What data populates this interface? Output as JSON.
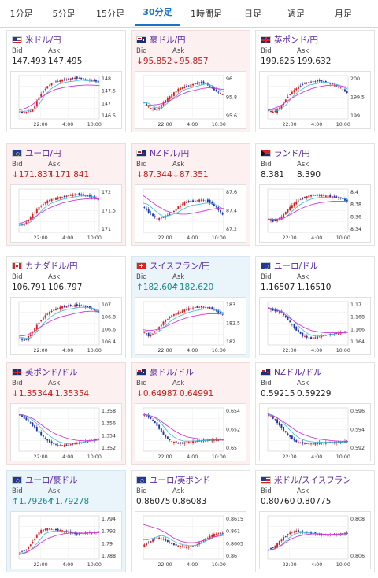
{
  "tabs": [
    {
      "label": "1分足",
      "active": false
    },
    {
      "label": "5分足",
      "active": false
    },
    {
      "label": "15分足",
      "active": false
    },
    {
      "label": "30分足",
      "active": true
    },
    {
      "label": "1時間足",
      "active": false
    },
    {
      "label": "日足",
      "active": false
    },
    {
      "label": "週足",
      "active": false
    },
    {
      "label": "月足",
      "active": false
    }
  ],
  "labels": {
    "bid": "Bid",
    "ask": "Ask"
  },
  "x_ticks": [
    "22:00",
    "4:00",
    "10:00"
  ],
  "colors": {
    "up": "#d42020",
    "down": "#1c35a8",
    "ma": "#d63ad6",
    "ma2": "#3bb8d8",
    "title": "#5a2aa0"
  },
  "pairs": [
    {
      "name": "米ドル/円",
      "flag": "us-flag",
      "trend": "none",
      "bid": "147.493",
      "ask": "147.495",
      "bid_dir": "",
      "ask_dir": "",
      "y_ticks": [
        "148",
        "147.5",
        "147",
        "146.5"
      ],
      "chart_data": {
        "type": "candlestick",
        "ylim": [
          146.3,
          148.2
        ],
        "shape": [
          0.15,
          0.15,
          0.2,
          0.55,
          0.75,
          0.85,
          0.9,
          0.92,
          0.95,
          0.92,
          0.9,
          0.85
        ],
        "ma_shape": [
          0.2,
          0.25,
          0.35,
          0.5,
          0.6,
          0.68,
          0.72,
          0.75,
          0.77,
          0.78,
          0.78,
          0.77
        ]
      }
    },
    {
      "name": "豪ドル/円",
      "flag": "au-flag",
      "trend": "down",
      "bid": "95.852",
      "ask": "95.857",
      "bid_dir": "down",
      "ask_dir": "down",
      "y_ticks": [
        "96",
        "95.8",
        "95.6"
      ],
      "chart_data": {
        "type": "candlestick",
        "ylim": [
          95.5,
          96.1
        ],
        "shape": [
          0.4,
          0.25,
          0.2,
          0.4,
          0.55,
          0.7,
          0.75,
          0.8,
          0.85,
          0.78,
          0.65,
          0.55
        ],
        "ma_shape": [
          0.3,
          0.32,
          0.33,
          0.38,
          0.45,
          0.55,
          0.62,
          0.66,
          0.7,
          0.72,
          0.7,
          0.68
        ]
      }
    },
    {
      "name": "英ポンド/円",
      "flag": "gb-flag",
      "trend": "none",
      "bid": "199.625",
      "ask": "199.632",
      "bid_dir": "",
      "ask_dir": "",
      "y_ticks": [
        "200",
        "199.5",
        "199"
      ],
      "chart_data": {
        "type": "candlestick",
        "ylim": [
          198.9,
          200.2
        ],
        "shape": [
          0.2,
          0.15,
          0.3,
          0.55,
          0.7,
          0.82,
          0.85,
          0.88,
          0.86,
          0.8,
          0.72,
          0.6
        ],
        "ma_shape": [
          0.2,
          0.25,
          0.33,
          0.45,
          0.55,
          0.63,
          0.7,
          0.74,
          0.77,
          0.78,
          0.76,
          0.73
        ]
      }
    },
    {
      "name": "ユーロ/円",
      "flag": "eu-flag",
      "trend": "down",
      "bid": "171.837",
      "ask": "171.841",
      "bid_dir": "down",
      "ask_dir": "down",
      "y_ticks": [
        "172",
        "171.5",
        "171"
      ],
      "chart_data": {
        "type": "candlestick",
        "ylim": [
          170.85,
          172.25
        ],
        "shape": [
          0.15,
          0.2,
          0.4,
          0.6,
          0.72,
          0.78,
          0.82,
          0.85,
          0.88,
          0.86,
          0.82,
          0.75
        ],
        "ma_shape": [
          0.2,
          0.25,
          0.33,
          0.45,
          0.55,
          0.62,
          0.68,
          0.72,
          0.75,
          0.77,
          0.78,
          0.77
        ]
      }
    },
    {
      "name": "NZドル/円",
      "flag": "nz-flag",
      "trend": "down",
      "bid": "87.344",
      "ask": "87.351",
      "bid_dir": "down",
      "ask_dir": "down",
      "y_ticks": [
        "87.6",
        "87.4",
        "87.2"
      ],
      "chart_data": {
        "type": "candlestick",
        "ylim": [
          87.1,
          87.7
        ],
        "shape": [
          0.6,
          0.45,
          0.3,
          0.35,
          0.45,
          0.6,
          0.7,
          0.72,
          0.75,
          0.72,
          0.6,
          0.4
        ],
        "ma_shape": [
          0.85,
          0.72,
          0.6,
          0.5,
          0.45,
          0.42,
          0.42,
          0.45,
          0.48,
          0.52,
          0.55,
          0.55
        ]
      }
    },
    {
      "name": "ランド/円",
      "flag": "za-flag",
      "trend": "none",
      "bid": "8.381",
      "ask": "8.390",
      "bid_dir": "",
      "ask_dir": "",
      "y_ticks": [
        "8.4",
        "8.38",
        "8.36",
        "8.34"
      ],
      "chart_data": {
        "type": "candlestick",
        "ylim": [
          8.33,
          8.41
        ],
        "shape": [
          0.3,
          0.25,
          0.35,
          0.55,
          0.7,
          0.8,
          0.85,
          0.86,
          0.84,
          0.82,
          0.8,
          0.72
        ],
        "ma_shape": [
          0.3,
          0.3,
          0.32,
          0.4,
          0.5,
          0.58,
          0.64,
          0.68,
          0.7,
          0.72,
          0.72,
          0.72
        ]
      }
    },
    {
      "name": "カナダドル/円",
      "flag": "ca-flag",
      "trend": "none",
      "bid": "106.791",
      "ask": "106.797",
      "bid_dir": "",
      "ask_dir": "",
      "y_ticks": [
        "107",
        "106.8",
        "106.6",
        "106.4"
      ],
      "chart_data": {
        "type": "candlestick",
        "ylim": [
          106.25,
          107.1
        ],
        "shape": [
          0.15,
          0.1,
          0.3,
          0.55,
          0.72,
          0.82,
          0.88,
          0.9,
          0.92,
          0.9,
          0.85,
          0.75
        ],
        "ma_shape": [
          0.2,
          0.22,
          0.3,
          0.42,
          0.52,
          0.6,
          0.66,
          0.7,
          0.74,
          0.77,
          0.78,
          0.77
        ]
      }
    },
    {
      "name": "スイスフラン/円",
      "flag": "ch-flag",
      "trend": "up",
      "bid": "182.604",
      "ask": "182.620",
      "bid_dir": "up",
      "ask_dir": "up",
      "y_ticks": [
        "183",
        "182.5",
        "182"
      ],
      "chart_data": {
        "type": "candlestick",
        "ylim": [
          181.6,
          183.2
        ],
        "shape": [
          0.3,
          0.2,
          0.35,
          0.55,
          0.68,
          0.75,
          0.82,
          0.86,
          0.88,
          0.86,
          0.8,
          0.7
        ],
        "ma_shape": [
          0.35,
          0.33,
          0.36,
          0.42,
          0.5,
          0.57,
          0.63,
          0.67,
          0.7,
          0.72,
          0.72,
          0.71
        ]
      }
    },
    {
      "name": "ユーロ/ドル",
      "flag": "eu-flag",
      "trend": "none",
      "bid": "1.16507",
      "ask": "1.16510",
      "bid_dir": "",
      "ask_dir": "",
      "y_ticks": [
        "1.17",
        "1.168",
        "1.166",
        "1.164"
      ],
      "chart_data": {
        "type": "candlestick",
        "ylim": [
          1.1625,
          1.1705
        ],
        "shape": [
          0.85,
          0.8,
          0.75,
          0.55,
          0.35,
          0.2,
          0.15,
          0.18,
          0.22,
          0.25,
          0.28,
          0.3
        ],
        "ma_shape": [
          0.85,
          0.82,
          0.75,
          0.62,
          0.5,
          0.4,
          0.33,
          0.3,
          0.28,
          0.28,
          0.28,
          0.29
        ]
      }
    },
    {
      "name": "英ポンド/ドル",
      "flag": "gb-flag",
      "trend": "down",
      "bid": "1.35344",
      "ask": "1.35354",
      "bid_dir": "down",
      "ask_dir": "down",
      "y_ticks": [
        "1.358",
        "1.356",
        "1.354",
        "1.352"
      ],
      "chart_data": {
        "type": "candlestick",
        "ylim": [
          1.3512,
          1.3592
        ],
        "shape": [
          0.85,
          0.75,
          0.6,
          0.4,
          0.25,
          0.15,
          0.12,
          0.15,
          0.18,
          0.22,
          0.25,
          0.28
        ],
        "ma_shape": [
          0.85,
          0.82,
          0.75,
          0.62,
          0.5,
          0.4,
          0.33,
          0.28,
          0.25,
          0.24,
          0.25,
          0.26
        ]
      }
    },
    {
      "name": "豪ドル/ドル",
      "flag": "au-flag",
      "trend": "down",
      "bid": "0.64987",
      "ask": "0.64991",
      "bid_dir": "down",
      "ask_dir": "down",
      "y_ticks": [
        "0.654",
        "0.652",
        "0.65"
      ],
      "chart_data": {
        "type": "candlestick",
        "ylim": [
          0.6488,
          0.6548
        ],
        "shape": [
          0.85,
          0.78,
          0.6,
          0.35,
          0.22,
          0.18,
          0.2,
          0.22,
          0.24,
          0.25,
          0.26,
          0.26
        ],
        "ma_shape": [
          0.85,
          0.82,
          0.75,
          0.62,
          0.5,
          0.4,
          0.33,
          0.3,
          0.28,
          0.27,
          0.26,
          0.26
        ]
      }
    },
    {
      "name": "NZドル/ドル",
      "flag": "nz-flag",
      "trend": "none",
      "bid": "0.59215",
      "ask": "0.59229",
      "bid_dir": "",
      "ask_dir": "",
      "y_ticks": [
        "0.596",
        "0.594",
        "0.592"
      ],
      "chart_data": {
        "type": "candlestick",
        "ylim": [
          0.5912,
          0.5972
        ],
        "shape": [
          0.85,
          0.75,
          0.55,
          0.35,
          0.22,
          0.18,
          0.17,
          0.18,
          0.2,
          0.2,
          0.21,
          0.22
        ],
        "ma_shape": [
          0.85,
          0.8,
          0.7,
          0.58,
          0.46,
          0.38,
          0.32,
          0.28,
          0.26,
          0.24,
          0.23,
          0.23
        ]
      }
    },
    {
      "name": "ユーロ/豪ドル",
      "flag": "eu-flag",
      "trend": "up",
      "bid": "1.79264",
      "ask": "1.79278",
      "bid_dir": "up",
      "ask_dir": "up",
      "y_ticks": [
        "1.794",
        "1.792",
        "1.79",
        "1.788"
      ],
      "chart_data": {
        "type": "candlestick",
        "ylim": [
          1.7872,
          1.7948
        ],
        "shape": [
          0.15,
          0.2,
          0.4,
          0.65,
          0.7,
          0.68,
          0.66,
          0.62,
          0.58,
          0.6,
          0.62,
          0.62
        ],
        "ma_shape": [
          0.1,
          0.15,
          0.25,
          0.38,
          0.48,
          0.54,
          0.58,
          0.6,
          0.6,
          0.6,
          0.61,
          0.61
        ]
      }
    },
    {
      "name": "ユーロ/英ポンド",
      "flag": "eu-flag",
      "trend": "none",
      "bid": "0.86075",
      "ask": "0.86083",
      "bid_dir": "",
      "ask_dir": "",
      "y_ticks": [
        "0.8615",
        "0.861",
        "0.8605",
        "0.86"
      ],
      "chart_data": {
        "type": "candlestick",
        "ylim": [
          0.8597,
          0.8618
        ],
        "shape": [
          0.3,
          0.4,
          0.5,
          0.45,
          0.35,
          0.3,
          0.28,
          0.3,
          0.4,
          0.5,
          0.58,
          0.6
        ],
        "ma_shape": [
          0.8,
          0.75,
          0.7,
          0.62,
          0.5,
          0.42,
          0.38,
          0.38,
          0.42,
          0.48,
          0.52,
          0.55
        ]
      }
    },
    {
      "name": "米ドル/スイスフラン",
      "flag": "us-flag",
      "trend": "none",
      "bid": "0.80760",
      "ask": "0.80775",
      "bid_dir": "",
      "ask_dir": "",
      "y_ticks": [
        "0.808",
        "0.806"
      ],
      "chart_data": {
        "type": "candlestick",
        "ylim": [
          0.8045,
          0.8095
        ],
        "shape": [
          0.2,
          0.28,
          0.45,
          0.6,
          0.65,
          0.62,
          0.6,
          0.58,
          0.55,
          0.56,
          0.58,
          0.6
        ],
        "ma_shape": [
          0.2,
          0.24,
          0.33,
          0.45,
          0.52,
          0.56,
          0.58,
          0.58,
          0.57,
          0.57,
          0.58,
          0.59
        ]
      }
    }
  ]
}
